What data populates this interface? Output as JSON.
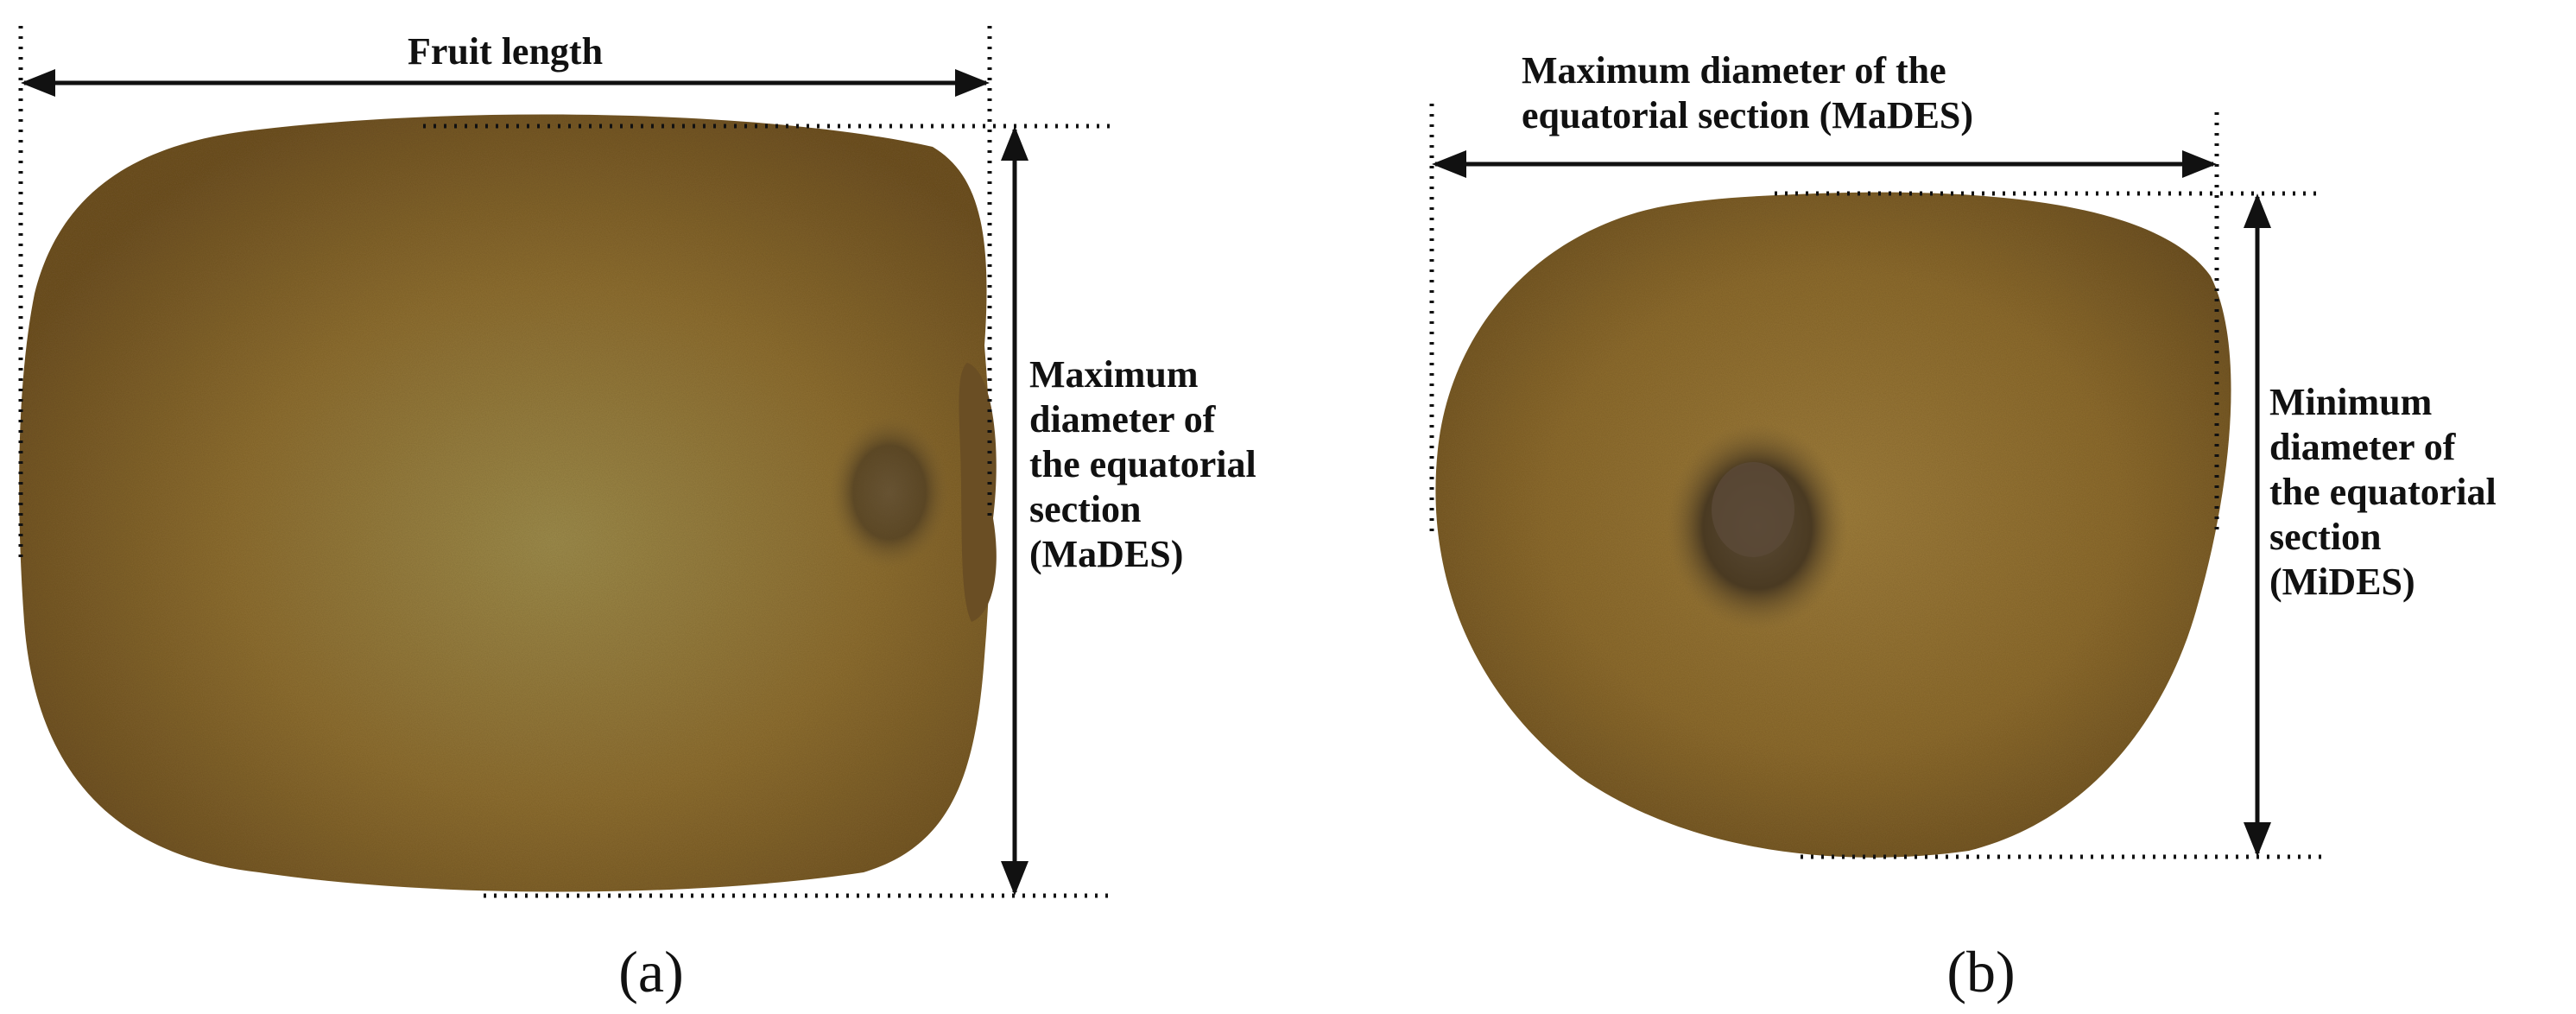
{
  "panels": [
    {
      "id": "a",
      "label": "(a)",
      "length_label": "Fruit length",
      "side_label_lines": [
        "Maximum",
        "diameter of",
        "the equatorial",
        "section",
        "(MaDES)"
      ]
    },
    {
      "id": "b",
      "label": "(b)",
      "top_label_lines": [
        "Maximum diameter of the",
        "equatorial section (MaDES)"
      ],
      "side_label_lines": [
        "Minimum",
        "diameter of",
        "the equatorial",
        "section",
        "(MiDES)"
      ]
    }
  ],
  "colors": {
    "fruit_skin": "#8b6a2e",
    "fruit_highlight": "#9a8a48",
    "fruit_edge": "#6e5222",
    "stem_scar": "#4a3a22",
    "line": "#111111",
    "background": "#ffffff"
  }
}
